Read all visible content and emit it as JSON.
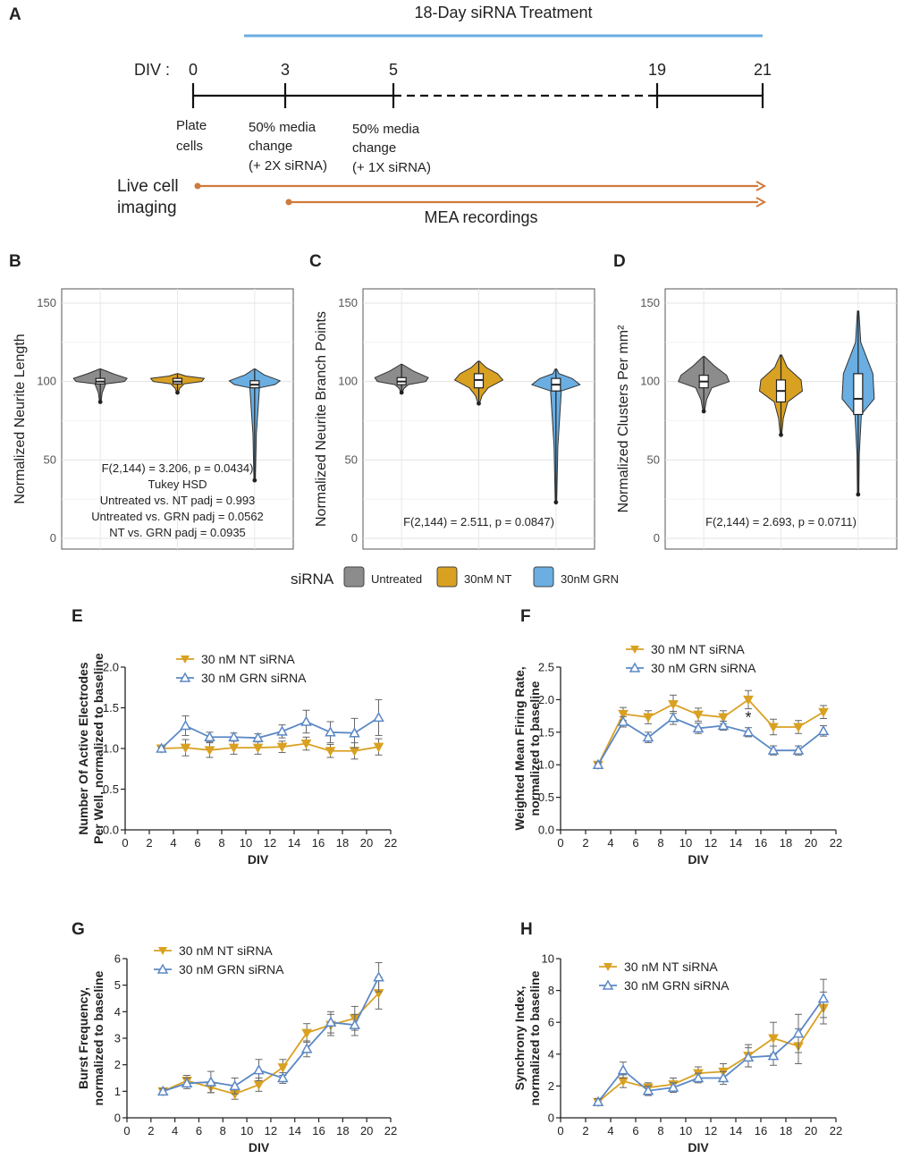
{
  "timeline": {
    "panel": "A",
    "treatment_label": "18-Day siRNA Treatment",
    "div_label": "DIV :",
    "ticks": [
      {
        "label": "0",
        "x": 0
      },
      {
        "label": "3",
        "x": 3
      },
      {
        "label": "5",
        "x": 5
      },
      {
        "label": "19",
        "x": 19
      },
      {
        "label": "21",
        "x": 21
      }
    ],
    "events": [
      {
        "lines": [
          "Plate",
          "cells"
        ]
      },
      {
        "lines": [
          "50% media",
          "change",
          "(+ 2X siRNA)"
        ]
      },
      {
        "lines": [
          "50% media",
          "change",
          "(+ 1X siRNA)"
        ]
      }
    ],
    "live_label": [
      "Live cell",
      "imaging"
    ],
    "mea_label": "MEA recordings",
    "colors": {
      "treatment": "#6aaee2",
      "arrows": "#d07a3c",
      "line": "#111111"
    }
  },
  "legend": {
    "title": "siRNA",
    "items": [
      {
        "label": "Untreated",
        "color": "#8c8c8c"
      },
      {
        "label": "30nM NT",
        "color": "#d9a122"
      },
      {
        "label": "30nM GRN",
        "color": "#6aaee2"
      }
    ]
  },
  "chart_data": [
    {
      "panel": "B",
      "type": "violin",
      "ylabel": "Normalized Neurite Length",
      "ylim": [
        0,
        150
      ],
      "yticks": [
        0,
        50,
        100,
        150
      ],
      "groups": [
        "Untreated",
        "30nM NT",
        "30nM GRN"
      ],
      "median": [
        100,
        100,
        98
      ],
      "q1": [
        98.5,
        98.5,
        96
      ],
      "q3": [
        102,
        102,
        100.5
      ],
      "min": [
        87,
        93,
        37
      ],
      "max": [
        108,
        105,
        108
      ],
      "stats": [
        "F(2,144) = 3.206, p = 0.0434)",
        "Tukey HSD",
        "Untreated vs. NT padj = 0.993",
        "Untreated vs. GRN padj = 0.0562",
        "NT vs. GRN padj = 0.0935"
      ]
    },
    {
      "panel": "C",
      "type": "violin",
      "ylabel": "Normalized Neurite Branch Points",
      "ylim": [
        0,
        150
      ],
      "yticks": [
        0,
        50,
        100,
        150
      ],
      "groups": [
        "Untreated",
        "30nM NT",
        "30nM GRN"
      ],
      "median": [
        100,
        101,
        98
      ],
      "q1": [
        98,
        96,
        94
      ],
      "q3": [
        102.5,
        105,
        102
      ],
      "min": [
        93,
        86,
        23
      ],
      "max": [
        111,
        113,
        108
      ],
      "stats": [
        "F(2,144) = 2.511, p = 0.0847)"
      ]
    },
    {
      "panel": "D",
      "type": "violin",
      "ylabel": "Normalized Clusters Per mm²",
      "ylim": [
        0,
        150
      ],
      "yticks": [
        0,
        50,
        100,
        150
      ],
      "groups": [
        "Untreated",
        "30nM NT",
        "30nM GRN"
      ],
      "median": [
        100,
        94,
        89
      ],
      "q1": [
        96,
        87,
        79
      ],
      "q3": [
        104,
        101,
        105
      ],
      "min": [
        81,
        66,
        28
      ],
      "max": [
        116,
        117,
        145
      ],
      "stats": [
        "F(2,144) = 2.693, p = 0.0711)"
      ]
    },
    {
      "panel": "E",
      "type": "line",
      "ylabel": [
        "Number Of Active Electrodes",
        "Per Well, normalized to baseline"
      ],
      "xlabel": "DIV",
      "xlim": [
        0,
        22
      ],
      "ylim": [
        0,
        2.0
      ],
      "xticks": [
        0,
        2,
        4,
        6,
        8,
        10,
        12,
        14,
        16,
        18,
        20,
        22
      ],
      "yticks": [
        0.0,
        0.5,
        1.0,
        1.5,
        2.0
      ],
      "x": [
        3,
        5,
        7,
        9,
        11,
        13,
        15,
        17,
        19,
        21
      ],
      "series": [
        {
          "name": "30 nM NT siRNA",
          "color": "#d9a122",
          "values": [
            1.0,
            1.01,
            0.98,
            1.01,
            1.01,
            1.02,
            1.06,
            0.97,
            0.97,
            1.02
          ],
          "err": [
            0.02,
            0.1,
            0.09,
            0.08,
            0.08,
            0.07,
            0.08,
            0.08,
            0.1,
            0.1
          ]
        },
        {
          "name": "30 nM GRN siRNA",
          "color": "#5b88c6",
          "values": [
            1.0,
            1.28,
            1.14,
            1.14,
            1.13,
            1.21,
            1.33,
            1.2,
            1.19,
            1.38
          ],
          "err": [
            0.02,
            0.12,
            0.06,
            0.05,
            0.05,
            0.08,
            0.14,
            0.13,
            0.18,
            0.22
          ]
        }
      ],
      "annotations": []
    },
    {
      "panel": "F",
      "type": "line",
      "ylabel": [
        "Weighted Mean Firing Rate,",
        "normalized to baseline"
      ],
      "xlabel": "DIV",
      "xlim": [
        0,
        22
      ],
      "ylim": [
        0,
        2.5
      ],
      "xticks": [
        0,
        2,
        4,
        6,
        8,
        10,
        12,
        14,
        16,
        18,
        20,
        22
      ],
      "yticks": [
        0.0,
        0.5,
        1.0,
        1.5,
        2.0,
        2.5
      ],
      "x": [
        3,
        5,
        7,
        9,
        11,
        13,
        15,
        17,
        19,
        21
      ],
      "series": [
        {
          "name": "30 nM NT siRNA",
          "color": "#d9a122",
          "values": [
            1.0,
            1.78,
            1.73,
            1.93,
            1.77,
            1.73,
            2.0,
            1.58,
            1.58,
            1.81
          ],
          "err": [
            0.03,
            0.1,
            0.1,
            0.14,
            0.1,
            0.1,
            0.14,
            0.12,
            0.1,
            0.1
          ]
        },
        {
          "name": "30 nM GRN siRNA",
          "color": "#5b88c6",
          "values": [
            1.0,
            1.66,
            1.42,
            1.72,
            1.56,
            1.6,
            1.5,
            1.22,
            1.22,
            1.52
          ],
          "err": [
            0.03,
            0.08,
            0.08,
            0.1,
            0.08,
            0.07,
            0.07,
            0.07,
            0.07,
            0.08
          ]
        }
      ],
      "annotations": [
        {
          "x": 15,
          "y": 1.75,
          "text": "*"
        }
      ]
    },
    {
      "panel": "G",
      "type": "line",
      "ylabel": [
        "Burst Frequency,",
        "normalized to baseline"
      ],
      "xlabel": "DIV",
      "xlim": [
        0,
        22
      ],
      "ylim": [
        0,
        6
      ],
      "xticks": [
        0,
        2,
        4,
        6,
        8,
        10,
        12,
        14,
        16,
        18,
        20,
        22
      ],
      "yticks": [
        0,
        1,
        2,
        3,
        4,
        5,
        6
      ],
      "x": [
        3,
        5,
        7,
        9,
        11,
        13,
        15,
        17,
        19,
        21
      ],
      "series": [
        {
          "name": "30 nM NT siRNA",
          "color": "#d9a122",
          "values": [
            1.0,
            1.4,
            1.15,
            0.9,
            1.25,
            1.9,
            3.2,
            3.5,
            3.75,
            4.7
          ],
          "err": [
            0.1,
            0.2,
            0.2,
            0.2,
            0.25,
            0.3,
            0.35,
            0.4,
            0.45,
            0.6
          ]
        },
        {
          "name": "30 nM GRN siRNA",
          "color": "#5b88c6",
          "values": [
            1.0,
            1.3,
            1.35,
            1.2,
            1.8,
            1.5,
            2.6,
            3.6,
            3.5,
            5.3
          ],
          "err": [
            0.1,
            0.2,
            0.4,
            0.3,
            0.4,
            0.2,
            0.3,
            0.4,
            0.4,
            0.55
          ]
        }
      ],
      "annotations": []
    },
    {
      "panel": "H",
      "type": "line",
      "ylabel": [
        "Synchrony Index,",
        "normalized to baseline"
      ],
      "xlabel": "DIV",
      "xlim": [
        0,
        22
      ],
      "ylim": [
        0,
        10
      ],
      "xticks": [
        0,
        2,
        4,
        6,
        8,
        10,
        12,
        14,
        16,
        18,
        20,
        22
      ],
      "yticks": [
        0,
        2,
        4,
        6,
        8,
        10
      ],
      "x": [
        3,
        5,
        7,
        9,
        11,
        13,
        15,
        17,
        19,
        21
      ],
      "series": [
        {
          "name": "30 nM NT siRNA",
          "color": "#d9a122",
          "values": [
            1.0,
            2.3,
            1.9,
            2.1,
            2.8,
            2.9,
            3.9,
            5.0,
            4.5,
            6.9
          ],
          "err": [
            0.2,
            0.4,
            0.3,
            0.4,
            0.4,
            0.5,
            0.7,
            1.0,
            1.1,
            1.0
          ]
        },
        {
          "name": "30 nM GRN siRNA",
          "color": "#5b88c6",
          "values": [
            1.0,
            3.0,
            1.7,
            1.9,
            2.5,
            2.5,
            3.8,
            3.9,
            5.3,
            7.5
          ],
          "err": [
            0.2,
            0.5,
            0.3,
            0.3,
            0.3,
            0.4,
            0.6,
            0.6,
            1.2,
            1.2
          ]
        }
      ],
      "annotations": []
    }
  ]
}
